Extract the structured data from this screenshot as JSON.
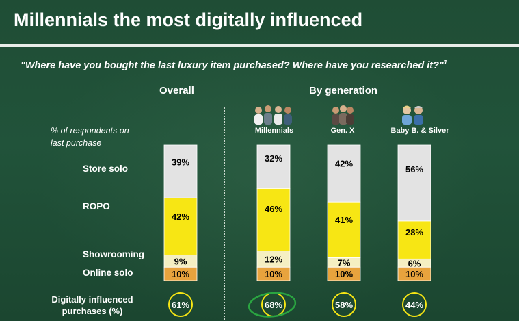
{
  "title": "Millennials the most digitally influenced",
  "question": "\"Where have you bought the last luxury item purchased? Where have you researched it?\"",
  "question_footnote": "1",
  "headers": {
    "overall": "Overall",
    "by_generation": "By generation"
  },
  "subtitle_line1": "% of respondents on",
  "subtitle_line2": "last purchase",
  "row_labels": {
    "store_solo": "Store solo",
    "ropo": "ROPO",
    "showrooming": "Showrooming",
    "online_solo": "Online solo"
  },
  "digital_label_line1": "Digitally influenced",
  "digital_label_line2": "purchases (%)",
  "chart_data": {
    "type": "bar",
    "stacked": true,
    "unit": "% of respondents on last purchase",
    "categories": [
      "Overall",
      "Millennials",
      "Gen. X",
      "Baby B. & Silver"
    ],
    "series": [
      {
        "name": "Online solo",
        "values": [
          10,
          10,
          10,
          10
        ],
        "labels": [
          "10%",
          "10%",
          "10%",
          "10%"
        ],
        "color": "#e8a33d"
      },
      {
        "name": "Showrooming",
        "values": [
          9,
          12,
          7,
          6
        ],
        "labels": [
          "9%",
          "12%",
          "7%",
          "6%"
        ],
        "color": "#f5efc2"
      },
      {
        "name": "ROPO",
        "values": [
          42,
          46,
          41,
          28
        ],
        "labels": [
          "42%",
          "46%",
          "41%",
          "28%"
        ],
        "color": "#f7e614"
      },
      {
        "name": "Store solo",
        "values": [
          39,
          32,
          42,
          56
        ],
        "labels": [
          "39%",
          "32%",
          "42%",
          "56%"
        ],
        "color": "#e3e3e3"
      }
    ],
    "digitally_influenced": {
      "values": [
        61,
        68,
        58,
        44
      ],
      "labels": [
        "61%",
        "68%",
        "58%",
        "44%"
      ],
      "highlight": "Millennials"
    },
    "ylim": [
      0,
      100
    ]
  },
  "colors": {
    "background": "#21533a",
    "circle": "#f7e614",
    "highlight": "#2aa541"
  }
}
